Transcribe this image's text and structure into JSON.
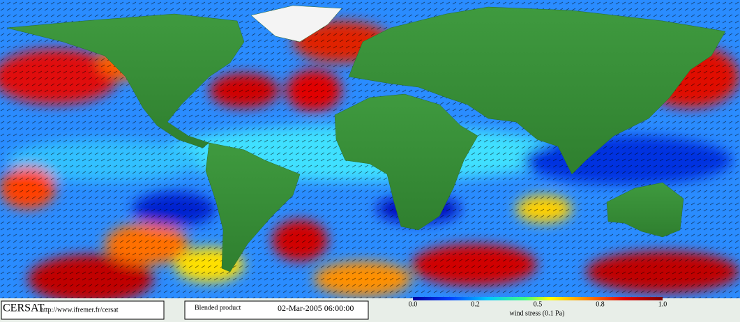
{
  "logo": "CERSAT",
  "url": "http://www.ifremer.fr/cersat",
  "product": "Blended product",
  "timestamp": "02-Mar-2005 06:00:00",
  "colorbar": {
    "label": "wind stress (0.1 Pa)",
    "tick_labels": [
      "0.0",
      "0.2",
      "0.5",
      "0.8",
      "1.0"
    ]
  }
}
